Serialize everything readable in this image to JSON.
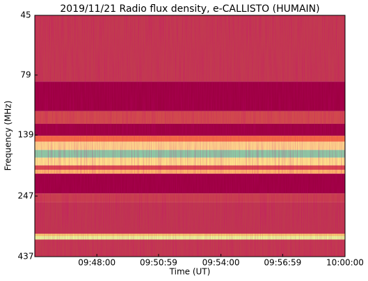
{
  "chart_data": {
    "type": "spectrogram",
    "title": "2019/11/21  Radio flux density, e-CALLISTO (HUMAIN)",
    "x_label": "Time (UT)",
    "y_label": "Frequency (MHz)",
    "xlim": [
      "09:45:00",
      "10:00:00"
    ],
    "xticks": [
      "09:48:00",
      "09:50:59",
      "09:54:00",
      "09:56:59",
      "10:00:00"
    ],
    "ylim": [
      45,
      437
    ],
    "yticks": [
      45,
      79,
      139,
      247,
      437
    ],
    "y_scale": "log",
    "y_inverted": true,
    "bands": [
      {
        "from": 45,
        "to": 84,
        "color": "#c23a50"
      },
      {
        "from": 84,
        "to": 111,
        "color": "#9e0142"
      },
      {
        "from": 111,
        "to": 125,
        "color": "#d04a4c"
      },
      {
        "from": 125,
        "to": 140,
        "color": "#9e0142"
      },
      {
        "from": 140,
        "to": 148,
        "color": "#f46d43"
      },
      {
        "from": 148,
        "to": 160,
        "color": "#fdd58a"
      },
      {
        "from": 160,
        "to": 172,
        "color": "#8cc9a4"
      },
      {
        "from": 172,
        "to": 185,
        "color": "#fee08b"
      },
      {
        "from": 185,
        "to": 193,
        "color": "#d84a4d"
      },
      {
        "from": 193,
        "to": 200,
        "color": "#fdb868"
      },
      {
        "from": 200,
        "to": 241,
        "color": "#9e0142"
      },
      {
        "from": 241,
        "to": 262,
        "color": "#c8404e"
      },
      {
        "from": 262,
        "to": 352,
        "color": "#c03750"
      },
      {
        "from": 352,
        "to": 360,
        "color": "#f8c86e"
      },
      {
        "from": 360,
        "to": 372,
        "color": "#e6f598"
      },
      {
        "from": 372,
        "to": 437,
        "color": "#c23a50"
      }
    ]
  }
}
